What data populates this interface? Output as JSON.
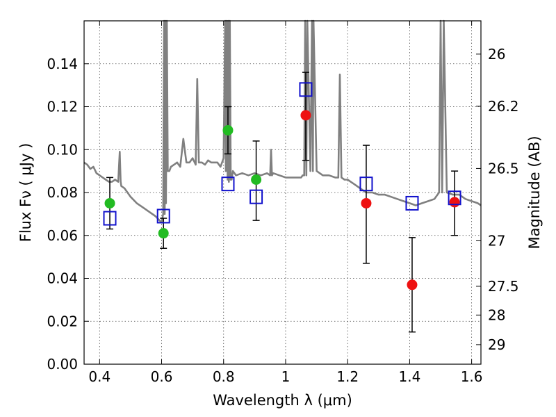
{
  "chart_data": {
    "type": "scatter",
    "xlabel": "Wavelength  λ (μm)",
    "ylabel": "Flux  Fν  ( μJy )",
    "ylabel_right": "Magnitude (AB)",
    "xlim": [
      0.35,
      1.63
    ],
    "ylim": [
      0.0,
      0.16
    ],
    "x_ticks": [
      0.4,
      0.6,
      0.8,
      1.0,
      1.2,
      1.4,
      1.6
    ],
    "x_tick_labels": [
      "0.4",
      "0.6",
      "0.8",
      "1",
      "1.2",
      "1.4",
      "1.6"
    ],
    "y_ticks": [
      0.0,
      0.02,
      0.04,
      0.06,
      0.08,
      0.1,
      0.12,
      0.14
    ],
    "y_tick_labels": [
      "0.00",
      "0.02",
      "0.04",
      "0.06",
      "0.08",
      "0.10",
      "0.12",
      "0.14"
    ],
    "right_ticks": [
      {
        "label": "26",
        "flux": 0.1445
      },
      {
        "label": "26.2",
        "flux": 0.1202
      },
      {
        "label": "26.5",
        "flux": 0.0912
      },
      {
        "label": "27",
        "flux": 0.0575
      },
      {
        "label": "27.5",
        "flux": 0.0363
      },
      {
        "label": "28",
        "flux": 0.0229
      },
      {
        "label": "29",
        "flux": 0.0091
      }
    ],
    "grid": true,
    "model_spectrum": {
      "color": "#808080",
      "x": [
        0.35,
        0.36,
        0.37,
        0.38,
        0.39,
        0.4,
        0.41,
        0.42,
        0.43,
        0.44,
        0.45,
        0.46,
        0.465,
        0.468,
        0.47,
        0.48,
        0.5,
        0.52,
        0.54,
        0.56,
        0.58,
        0.6,
        0.605,
        0.608,
        0.61,
        0.612,
        0.614,
        0.617,
        0.62,
        0.625,
        0.63,
        0.64,
        0.65,
        0.66,
        0.67,
        0.68,
        0.69,
        0.7,
        0.71,
        0.715,
        0.72,
        0.73,
        0.74,
        0.75,
        0.76,
        0.77,
        0.78,
        0.79,
        0.8,
        0.805,
        0.807,
        0.81,
        0.813,
        0.815,
        0.817,
        0.82,
        0.823,
        0.826,
        0.83,
        0.84,
        0.86,
        0.88,
        0.9,
        0.92,
        0.94,
        0.95,
        0.953,
        0.956,
        0.96,
        0.98,
        1.0,
        1.02,
        1.04,
        1.05,
        1.055,
        1.06,
        1.063,
        1.067,
        1.07,
        1.08,
        1.085,
        1.088,
        1.09,
        1.1,
        1.12,
        1.14,
        1.16,
        1.17,
        1.175,
        1.18,
        1.19,
        1.2,
        1.22,
        1.24,
        1.26,
        1.28,
        1.3,
        1.32,
        1.34,
        1.36,
        1.38,
        1.4,
        1.42,
        1.44,
        1.46,
        1.48,
        1.49,
        1.495,
        1.5,
        1.505,
        1.51,
        1.52,
        1.54,
        1.56,
        1.58,
        1.6,
        1.62,
        1.63
      ],
      "y": [
        0.094,
        0.093,
        0.091,
        0.092,
        0.089,
        0.088,
        0.087,
        0.086,
        0.085,
        0.085,
        0.086,
        0.085,
        0.099,
        0.085,
        0.083,
        0.082,
        0.078,
        0.075,
        0.073,
        0.071,
        0.069,
        0.066,
        0.07,
        0.165,
        0.07,
        0.165,
        0.075,
        0.165,
        0.09,
        0.09,
        0.092,
        0.093,
        0.094,
        0.092,
        0.105,
        0.094,
        0.094,
        0.096,
        0.093,
        0.133,
        0.094,
        0.094,
        0.093,
        0.095,
        0.094,
        0.094,
        0.094,
        0.092,
        0.096,
        0.165,
        0.09,
        0.165,
        0.086,
        0.165,
        0.085,
        0.165,
        0.086,
        0.086,
        0.09,
        0.088,
        0.089,
        0.088,
        0.089,
        0.088,
        0.089,
        0.088,
        0.1,
        0.088,
        0.089,
        0.088,
        0.087,
        0.087,
        0.087,
        0.087,
        0.088,
        0.088,
        0.165,
        0.088,
        0.165,
        0.09,
        0.165,
        0.09,
        0.165,
        0.09,
        0.088,
        0.088,
        0.087,
        0.087,
        0.135,
        0.087,
        0.086,
        0.086,
        0.084,
        0.082,
        0.08,
        0.08,
        0.079,
        0.079,
        0.078,
        0.077,
        0.076,
        0.075,
        0.074,
        0.075,
        0.076,
        0.077,
        0.079,
        0.08,
        0.165,
        0.08,
        0.165,
        0.08,
        0.079,
        0.079,
        0.077,
        0.076,
        0.075,
        0.074
      ]
    },
    "series": [
      {
        "marker": "circle",
        "color": "#22bb22",
        "points": [
          {
            "x": 0.433,
            "y": 0.075
          },
          {
            "x": 0.606,
            "y": 0.061
          },
          {
            "x": 0.814,
            "y": 0.109
          },
          {
            "x": 0.905,
            "y": 0.086
          }
        ]
      },
      {
        "marker": "circle",
        "color": "#ee1111",
        "points": [
          {
            "x": 1.065,
            "y": 0.116
          },
          {
            "x": 1.26,
            "y": 0.075
          },
          {
            "x": 1.408,
            "y": 0.037
          },
          {
            "x": 1.545,
            "y": 0.0755
          }
        ]
      },
      {
        "marker": "open-square",
        "color": "#1111cc",
        "points": [
          {
            "x": 0.433,
            "y": 0.068,
            "err_lo": 0.063,
            "err_hi": 0.087
          },
          {
            "x": 0.606,
            "y": 0.069,
            "err_lo": 0.054,
            "err_hi": 0.068
          },
          {
            "x": 0.814,
            "y": 0.084,
            "err_lo": 0.098,
            "err_hi": 0.12
          },
          {
            "x": 0.905,
            "y": 0.078,
            "err_lo": 0.067,
            "err_hi": 0.104
          },
          {
            "x": 1.065,
            "y": 0.128,
            "err_lo": 0.095,
            "err_hi": 0.136
          },
          {
            "x": 1.26,
            "y": 0.084,
            "err_lo": 0.047,
            "err_hi": 0.102
          },
          {
            "x": 1.408,
            "y": 0.075,
            "err_lo": 0.015,
            "err_hi": 0.059
          },
          {
            "x": 1.545,
            "y": 0.0775,
            "err_lo": 0.06,
            "err_hi": 0.09
          }
        ]
      }
    ]
  }
}
